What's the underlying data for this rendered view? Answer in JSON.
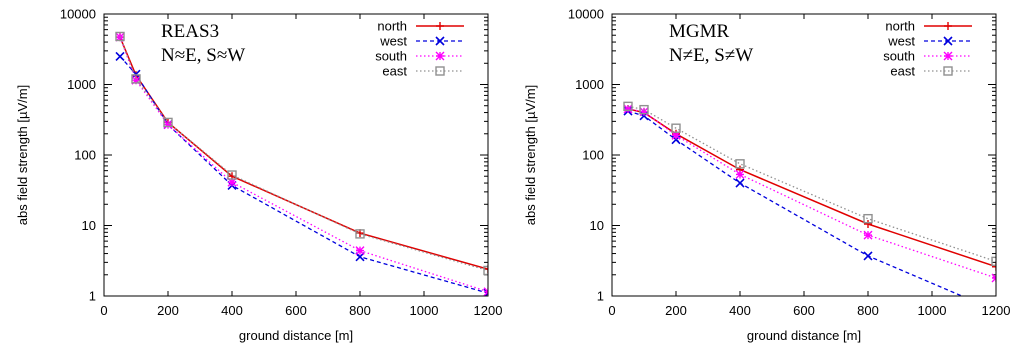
{
  "chart_data": [
    {
      "type": "line",
      "title": "",
      "annotation": [
        "REAS3",
        "N≈E, S≈W"
      ],
      "xlabel": "ground distance [m]",
      "ylabel": "abs field strength [µV/m]",
      "xlim": [
        0,
        1200
      ],
      "ylim": [
        1,
        10000
      ],
      "yscale": "log",
      "xticks": [
        "0",
        "200",
        "400",
        "600",
        "800",
        "1000",
        "1200"
      ],
      "yticks": [
        "1",
        "10",
        "100",
        "1000",
        "10000"
      ],
      "legend_position": "top-right",
      "grid": false,
      "x": [
        50,
        100,
        200,
        400,
        800,
        1200
      ],
      "series": [
        {
          "name": "north",
          "color": "#e00000",
          "marker": "plus",
          "dash": "solid",
          "values": [
            4700,
            1350,
            290,
            50,
            7.8,
            2.4
          ]
        },
        {
          "name": "west",
          "color": "#0000dd",
          "marker": "cross",
          "dash": "dashed",
          "values": [
            2500,
            1400,
            270,
            37,
            3.6,
            1.1
          ]
        },
        {
          "name": "south",
          "color": "#ff00ff",
          "marker": "star",
          "dash": "dotted",
          "values": [
            4700,
            1150,
            270,
            41,
            4.4,
            1.15
          ]
        },
        {
          "name": "east",
          "color": "#909090",
          "marker": "square",
          "dash": "dotted",
          "values": [
            4800,
            1200,
            290,
            52,
            7.6,
            2.3
          ]
        }
      ]
    },
    {
      "type": "line",
      "title": "",
      "annotation": [
        "MGMR",
        "N≠E, S≠W"
      ],
      "xlabel": "ground distance [m]",
      "ylabel": "abs field strength [µV/m]",
      "xlim": [
        0,
        1200
      ],
      "ylim": [
        1,
        10000
      ],
      "yscale": "log",
      "xticks": [
        "0",
        "200",
        "400",
        "600",
        "800",
        "1000",
        "1200"
      ],
      "yticks": [
        "1",
        "10",
        "100",
        "1000",
        "10000"
      ],
      "legend_position": "top-right",
      "grid": false,
      "x": [
        50,
        100,
        200,
        400,
        800,
        1200
      ],
      "series": [
        {
          "name": "north",
          "color": "#e00000",
          "marker": "plus",
          "dash": "solid",
          "values": [
            450,
            400,
            200,
            62,
            10.5,
            2.6
          ]
        },
        {
          "name": "west",
          "color": "#0000dd",
          "marker": "cross",
          "dash": "dashed",
          "values": [
            420,
            360,
            165,
            40,
            3.7,
            0.62
          ]
        },
        {
          "name": "south",
          "color": "#ff00ff",
          "marker": "star",
          "dash": "dotted",
          "values": [
            450,
            410,
            190,
            53,
            7.3,
            1.8
          ]
        },
        {
          "name": "east",
          "color": "#909090",
          "marker": "square",
          "dash": "dotted",
          "values": [
            490,
            440,
            240,
            75,
            12.5,
            3.1
          ]
        }
      ]
    }
  ]
}
